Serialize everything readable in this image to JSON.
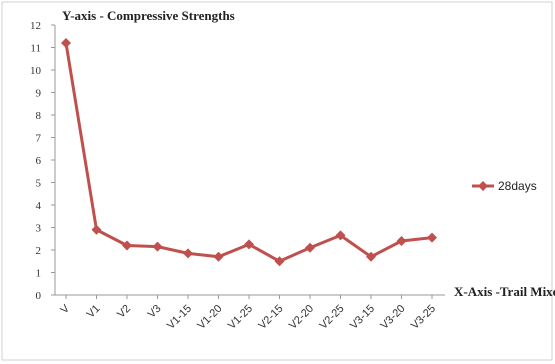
{
  "chart_data": {
    "type": "line",
    "ylabel": "Y-axis - Compressive Strengths",
    "xlabel": "X-Axis -Trail Mixes",
    "categories": [
      "V",
      "V1",
      "V2",
      "V3",
      "V1-15",
      "V1-20",
      "V1-25",
      "V2-15",
      "V2-20",
      "V2-25",
      "V3-15",
      "V3-20",
      "V3-25"
    ],
    "series": [
      {
        "name": "28days",
        "values": [
          11.2,
          2.9,
          2.2,
          2.15,
          1.85,
          1.7,
          2.25,
          1.5,
          2.1,
          2.65,
          1.7,
          2.4,
          2.55
        ],
        "color": "#c0504d"
      }
    ],
    "ylim": [
      0,
      12
    ],
    "yticks": [
      0,
      1,
      2,
      3,
      4,
      5,
      6,
      7,
      8,
      9,
      10,
      11,
      12
    ],
    "grid": false,
    "legend_position": "right",
    "marker": "diamond"
  }
}
